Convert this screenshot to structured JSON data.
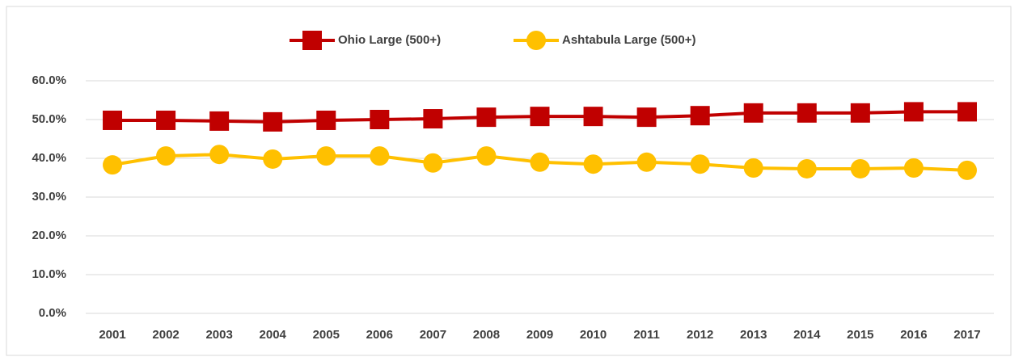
{
  "chart_data": {
    "type": "line",
    "categories": [
      "2001",
      "2002",
      "2003",
      "2004",
      "2005",
      "2006",
      "2007",
      "2008",
      "2009",
      "2010",
      "2011",
      "2012",
      "2013",
      "2014",
      "2015",
      "2016",
      "2017"
    ],
    "series": [
      {
        "name": "Ohio Large (500+)",
        "color": "#c00000",
        "marker": "square",
        "values": [
          49.8,
          49.8,
          49.6,
          49.4,
          49.8,
          50.0,
          50.2,
          50.6,
          50.8,
          50.8,
          50.6,
          51.0,
          51.7,
          51.7,
          51.7,
          52.0,
          52.0
        ]
      },
      {
        "name": "Ashtabula Large (500+)",
        "color": "#ffc000",
        "marker": "circle",
        "values": [
          38.3,
          40.6,
          41.0,
          39.8,
          40.6,
          40.6,
          38.8,
          40.6,
          39.0,
          38.5,
          39.0,
          38.5,
          37.5,
          37.3,
          37.3,
          37.5,
          36.9
        ]
      }
    ],
    "ylim": [
      0,
      60
    ],
    "yticks": [
      {
        "value": 0,
        "label": "0.0%"
      },
      {
        "value": 10,
        "label": "10.0%"
      },
      {
        "value": 20,
        "label": "20.0%"
      },
      {
        "value": 30,
        "label": "30.0%"
      },
      {
        "value": 40,
        "label": "40.0%"
      },
      {
        "value": 50,
        "label": "50.0%"
      },
      {
        "value": 60,
        "label": "60.0%"
      }
    ],
    "grid": true,
    "legend": "top"
  }
}
